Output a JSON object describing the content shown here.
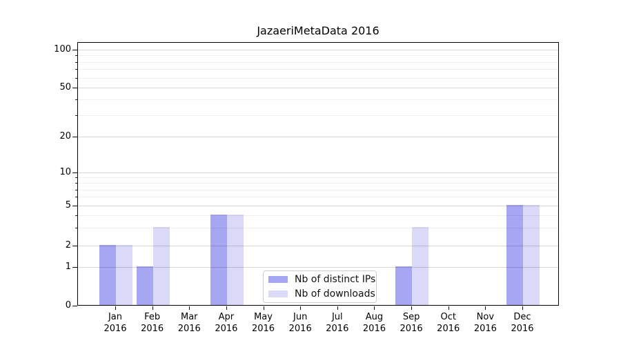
{
  "chart_data": {
    "type": "bar",
    "title": "JazaeriMetaData 2016",
    "year": "2016",
    "months": [
      "Jan",
      "Feb",
      "Mar",
      "Apr",
      "May",
      "Jun",
      "Jul",
      "Aug",
      "Sep",
      "Oct",
      "Nov",
      "Dec"
    ],
    "categories": [
      "Jan 2016",
      "Feb 2016",
      "Mar 2016",
      "Apr 2016",
      "May 2016",
      "Jun 2016",
      "Jul 2016",
      "Aug 2016",
      "Sep 2016",
      "Oct 2016",
      "Nov 2016",
      "Dec 2016"
    ],
    "series": [
      {
        "name": "Nb of distinct IPs",
        "color": "#a6a6f2",
        "values": [
          2,
          1,
          0,
          4,
          0,
          0,
          0,
          0,
          1,
          0,
          0,
          5
        ]
      },
      {
        "name": "Nb of downloads",
        "color": "#dadaf8",
        "values": [
          2,
          3,
          0,
          4,
          0,
          0,
          0,
          0,
          3,
          0,
          0,
          5
        ]
      }
    ],
    "xlabel": "",
    "ylabel": "",
    "yscale": "symlog",
    "ylim": [
      0,
      110
    ],
    "yticks_major": [
      0,
      1,
      2,
      5,
      10,
      20,
      50,
      100
    ],
    "yticks_minor": [
      3,
      4,
      6,
      7,
      8,
      9,
      30,
      40,
      60,
      70,
      80,
      90
    ],
    "grid": "both",
    "legend_position": "lower-center-inside"
  },
  "colors": {
    "axis": "#000000",
    "grid_major": "#d9d9d9",
    "grid_minor": "#efefef",
    "legend_border": "#cccccc"
  }
}
